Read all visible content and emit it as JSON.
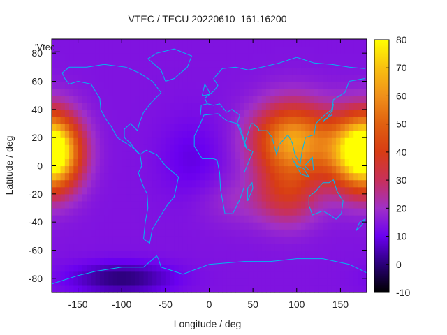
{
  "chart_data": {
    "type": "heatmap",
    "title": "VTEC / TECU 20220610_161.16200",
    "xlabel": "Longitude / deg",
    "ylabel": "Latitude / deg",
    "legend_label": "'Vtec_",
    "xlim": [
      -180,
      180
    ],
    "ylim": [
      -90,
      90
    ],
    "x_ticks": [
      -150,
      -100,
      -50,
      0,
      50,
      100,
      150
    ],
    "y_ticks": [
      -80,
      -60,
      -40,
      -20,
      0,
      20,
      40,
      60,
      80
    ],
    "colorbar": {
      "min": -10,
      "max": 80,
      "ticks": [
        -10,
        0,
        10,
        20,
        30,
        40,
        50,
        60,
        70,
        80
      ]
    },
    "grid": false,
    "background_value": 14,
    "features": [
      {
        "lon": 95,
        "lat": 18,
        "peak": 50,
        "sigma_lon": 30,
        "sigma_lat": 18
      },
      {
        "lon": 165,
        "lat": 10,
        "peak": 48,
        "sigma_lon": 25,
        "sigma_lat": 18
      },
      {
        "lon": -175,
        "lat": 10,
        "peak": 50,
        "sigma_lon": 20,
        "sigma_lat": 18
      },
      {
        "lon": 90,
        "lat": -20,
        "peak": 20,
        "sigma_lon": 25,
        "sigma_lat": 15
      },
      {
        "lon": -100,
        "lat": -80,
        "peak": -14,
        "sigma_lon": 40,
        "sigma_lat": 8
      },
      {
        "lon": -20,
        "lat": 5,
        "peak": -5,
        "sigma_lon": 25,
        "sigma_lat": 20
      },
      {
        "lon": 30,
        "lat": -25,
        "peak": 5,
        "sigma_lon": 30,
        "sigma_lat": 12
      }
    ],
    "colormap": [
      [
        -10,
        "#000000"
      ],
      [
        0,
        "#2a0078"
      ],
      [
        10,
        "#6a00f0"
      ],
      [
        20,
        "#a030c8"
      ],
      [
        30,
        "#c8305a"
      ],
      [
        40,
        "#d83c14"
      ],
      [
        50,
        "#e06010"
      ],
      [
        60,
        "#f0901a"
      ],
      [
        70,
        "#f8c010"
      ],
      [
        80,
        "#ffff00"
      ]
    ],
    "coast_color": "#00b8f0"
  }
}
